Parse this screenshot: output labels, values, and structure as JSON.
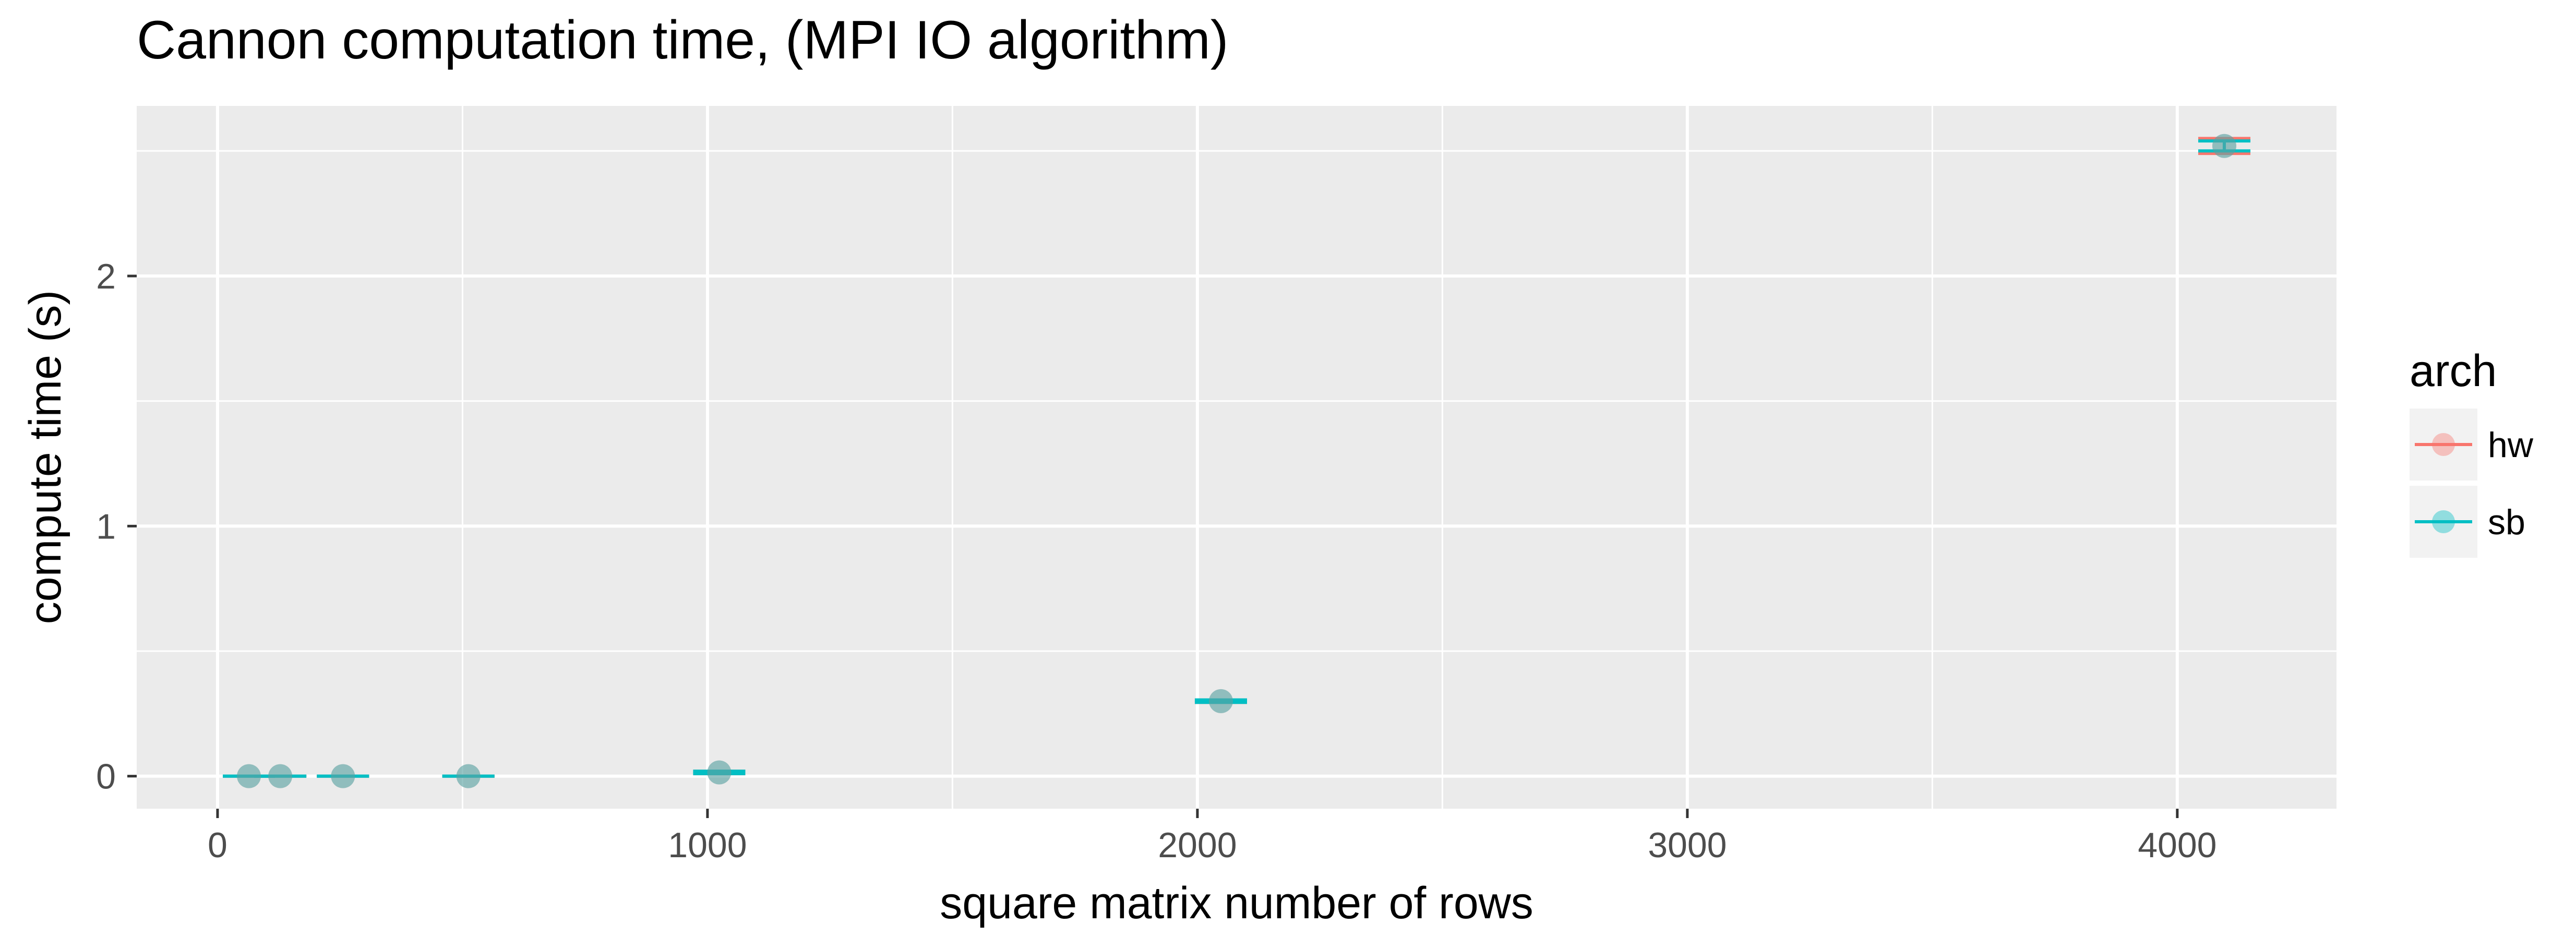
{
  "chart_data": {
    "type": "scatter",
    "title": "Cannon computation time, (MPI IO algorithm)",
    "xlabel": "square matrix number of rows",
    "ylabel": "compute time (s)",
    "xlim": [
      -165,
      4325
    ],
    "ylim": [
      -0.13,
      2.68
    ],
    "x_ticks": [
      0,
      1000,
      2000,
      3000,
      4000
    ],
    "x_tick_labels": [
      "0",
      "1000",
      "2000",
      "3000",
      "4000"
    ],
    "y_ticks": [
      0,
      1,
      2
    ],
    "y_tick_labels": [
      "0",
      "1",
      "2"
    ],
    "grid": true,
    "error_bars": true,
    "legend": {
      "title": "arch",
      "position": "right"
    },
    "series": [
      {
        "name": "hw",
        "color": "#F8766D",
        "points": [
          {
            "x": 64,
            "y": 0.0,
            "ymin": 0.0,
            "ymax": 0.0
          },
          {
            "x": 128,
            "y": 0.0,
            "ymin": 0.0,
            "ymax": 0.0
          },
          {
            "x": 256,
            "y": 0.0,
            "ymin": 0.0,
            "ymax": 0.0
          },
          {
            "x": 512,
            "y": 0.0,
            "ymin": 0.0,
            "ymax": 0.0
          },
          {
            "x": 1024,
            "y": 0.015,
            "ymin": 0.01,
            "ymax": 0.02
          },
          {
            "x": 2048,
            "y": 0.3,
            "ymin": 0.295,
            "ymax": 0.305
          },
          {
            "x": 4096,
            "y": 2.52,
            "ymin": 2.49,
            "ymax": 2.55
          }
        ]
      },
      {
        "name": "sb",
        "color": "#00BFC4",
        "points": [
          {
            "x": 64,
            "y": 0.0,
            "ymin": 0.0,
            "ymax": 0.0
          },
          {
            "x": 128,
            "y": 0.0,
            "ymin": 0.0,
            "ymax": 0.0
          },
          {
            "x": 256,
            "y": 0.0,
            "ymin": 0.0,
            "ymax": 0.0
          },
          {
            "x": 512,
            "y": 0.0,
            "ymin": 0.0,
            "ymax": 0.0
          },
          {
            "x": 1024,
            "y": 0.015,
            "ymin": 0.01,
            "ymax": 0.02
          },
          {
            "x": 2048,
            "y": 0.3,
            "ymin": 0.295,
            "ymax": 0.305
          },
          {
            "x": 4096,
            "y": 2.52,
            "ymin": 2.5,
            "ymax": 2.54
          }
        ]
      }
    ]
  }
}
